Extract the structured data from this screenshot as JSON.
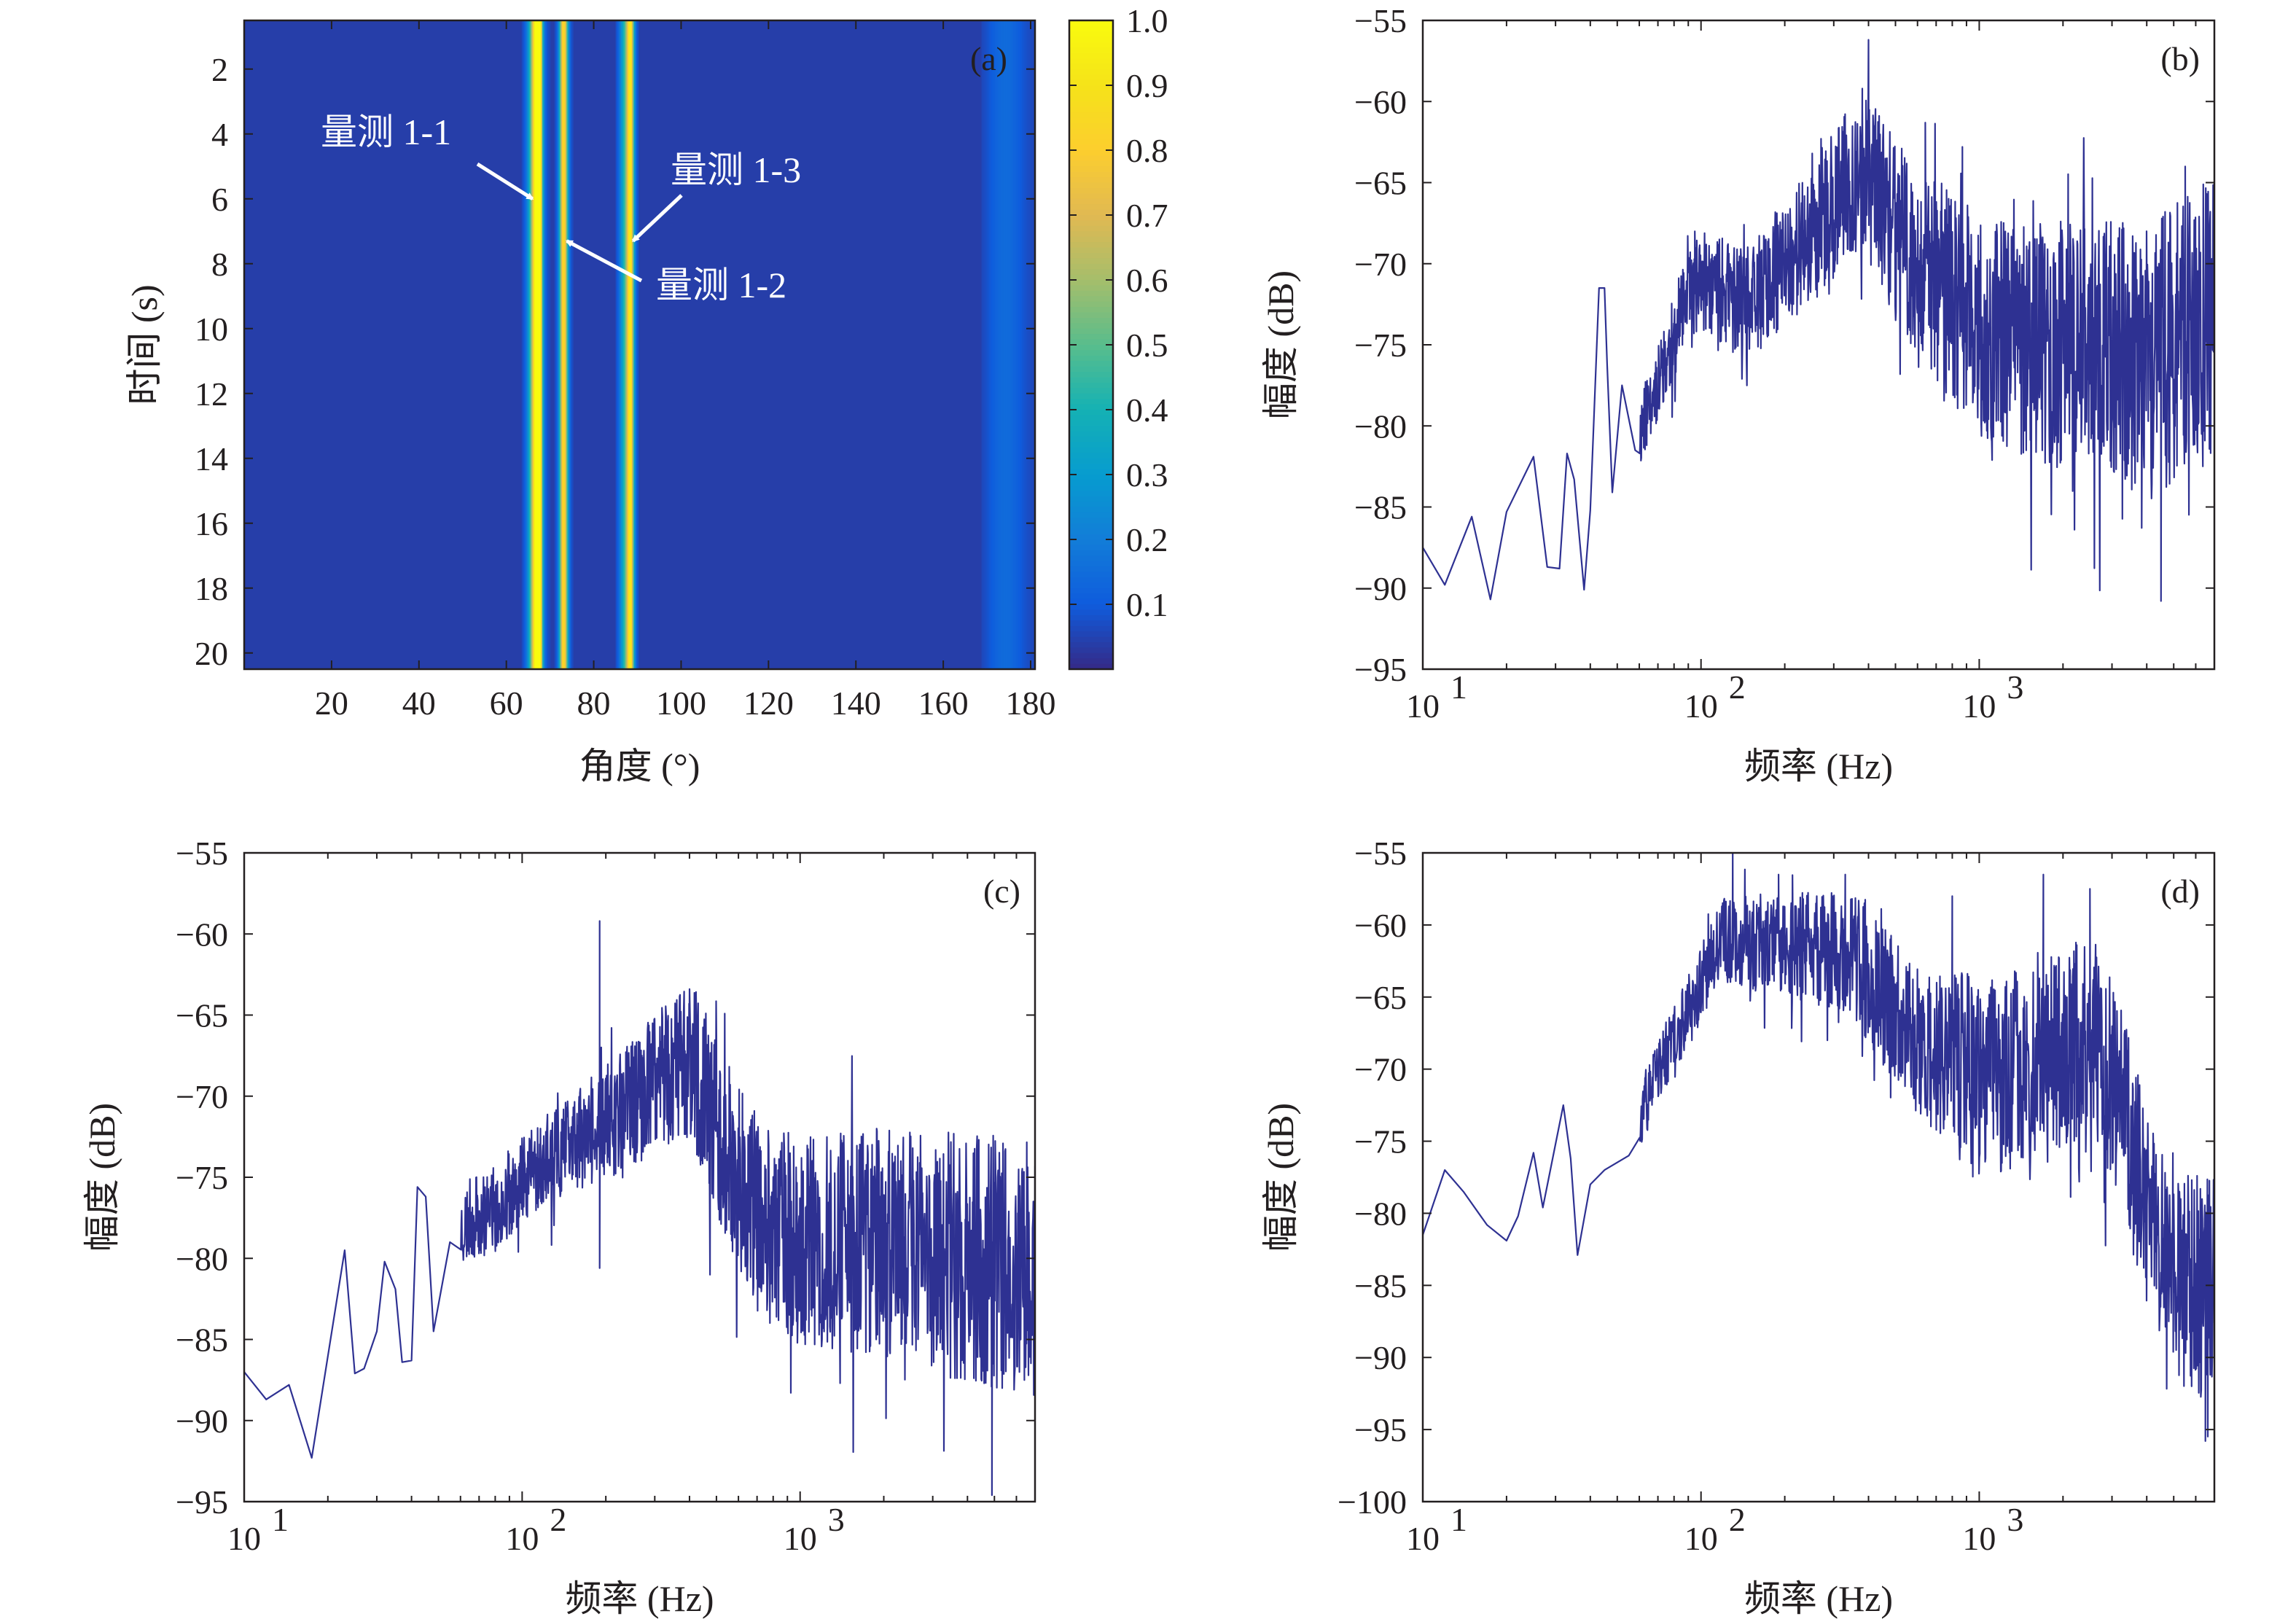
{
  "colors": {
    "axis": "#231f20",
    "line": "#2e3192",
    "annotation": "#ffffff"
  },
  "chart_data": [
    {
      "type": "heatmap",
      "panel": "(a)",
      "xlabel": "角度 (°)",
      "ylabel": "时间 (s)",
      "xlim": [
        0,
        181
      ],
      "ylim": [
        0.5,
        20.5
      ],
      "xticks": [
        20,
        40,
        60,
        80,
        100,
        120,
        140,
        160,
        180
      ],
      "yticks": [
        2,
        4,
        6,
        8,
        10,
        12,
        14,
        16,
        18,
        20
      ],
      "colorbar": {
        "range": [
          0,
          1.0
        ],
        "ticks": [
          "1.0",
          "0.9",
          "0.8",
          "0.7",
          "0.6",
          "0.5",
          "0.4",
          "0.3",
          "0.2",
          "0.1"
        ],
        "colormap": "parula"
      },
      "background_level": 0.04,
      "ridges": [
        {
          "angle": 66.5,
          "peak": 0.7,
          "width": 1.1
        },
        {
          "angle": 67.2,
          "peak": 0.9,
          "width": 0.55
        },
        {
          "angle": 73.0,
          "peak": 0.8,
          "width": 0.7
        },
        {
          "angle": 87.5,
          "peak": 0.45,
          "width": 1.1
        },
        {
          "angle": 88.3,
          "peak": 0.55,
          "width": 0.55
        },
        {
          "angle": 174,
          "peak": 0.1,
          "width": 3
        }
      ],
      "annotations": [
        {
          "text": "量测 1-1",
          "target_angle": 67,
          "target_time": 6
        },
        {
          "text": "量测 1-2",
          "target_angle": 72.5,
          "target_time": 7.3
        },
        {
          "text": "量测 1-3",
          "target_angle": 88,
          "target_time": 7.3
        }
      ]
    },
    {
      "type": "line",
      "panel": "(b)",
      "xlabel": "频率 (Hz)",
      "ylabel": "幅度 (dB)",
      "xscale": "log",
      "xlim": [
        10,
        7000
      ],
      "ylim": [
        -95,
        -55
      ],
      "xticks": [
        10,
        100,
        1000
      ],
      "xtick_labels": [
        "10",
        "10",
        "10"
      ],
      "xtick_exponents": [
        "1",
        "2",
        "3"
      ],
      "yticks": [
        -95,
        -90,
        -85,
        -80,
        -75,
        -70,
        -65,
        -60,
        -55
      ],
      "ytick_labels": [
        "−95",
        "−90",
        "−85",
        "−80",
        "−75",
        "−70",
        "−65",
        "−60",
        "−55"
      ],
      "anchors": [
        [
          10,
          -87.5
        ],
        [
          12,
          -89.8
        ],
        [
          15,
          -85.6
        ],
        [
          17.5,
          -90.7
        ],
        [
          20,
          -85.3
        ],
        [
          25,
          -81.9
        ],
        [
          28,
          -88.7
        ],
        [
          31,
          -88.8
        ],
        [
          33,
          -81.7
        ],
        [
          35,
          -83.3
        ],
        [
          38,
          -90.1
        ],
        [
          40,
          -85.2
        ],
        [
          43,
          -71.5
        ],
        [
          46,
          -76.3
        ],
        [
          48,
          -84.1
        ],
        [
          52,
          -77.5
        ],
        [
          58,
          -81.5
        ],
        [
          65,
          -78.5
        ],
        [
          75,
          -76
        ],
        [
          85,
          -73
        ],
        [
          100,
          -71
        ],
        [
          150,
          -72.5
        ],
        [
          250,
          -68
        ],
        [
          380,
          -64
        ],
        [
          500,
          -68
        ],
        [
          700,
          -71
        ],
        [
          1000,
          -74
        ],
        [
          1500,
          -75
        ],
        [
          2500,
          -75
        ],
        [
          4000,
          -76
        ],
        [
          5500,
          -74.5
        ],
        [
          7000,
          -73
        ]
      ],
      "spread": [
        [
          10,
          0
        ],
        [
          50,
          2
        ],
        [
          100,
          3
        ],
        [
          300,
          4.5
        ],
        [
          1000,
          7
        ],
        [
          3000,
          8
        ],
        [
          7000,
          9
        ]
      ],
      "spikes": [
        [
          380,
          -59.2
        ],
        [
          270,
          -62.3
        ],
        [
          640,
          -61.3
        ],
        [
          95,
          -68
        ],
        [
          45,
          -71.5
        ],
        [
          870,
          -62.8
        ],
        [
          4500,
          -90.8
        ],
        [
          2200,
          -86.4
        ],
        [
          5500,
          -64
        ]
      ],
      "samples": 1400,
      "seed": 11
    },
    {
      "type": "line",
      "panel": "(c)",
      "xlabel": "频率 (Hz)",
      "ylabel": "幅度 (dB)",
      "xscale": "log",
      "xlim": [
        10,
        7000
      ],
      "ylim": [
        -95,
        -55
      ],
      "xticks": [
        10,
        100,
        1000
      ],
      "xtick_labels": [
        "10",
        "10",
        "10"
      ],
      "xtick_exponents": [
        "1",
        "2",
        "3"
      ],
      "yticks": [
        -95,
        -90,
        -85,
        -80,
        -75,
        -70,
        -65,
        -60,
        -55
      ],
      "ytick_labels": [
        "−95",
        "−90",
        "−85",
        "−80",
        "−75",
        "−70",
        "−65",
        "−60",
        "−55"
      ],
      "anchors": [
        [
          10,
          -87
        ],
        [
          12,
          -88.7
        ],
        [
          14.5,
          -87.8
        ],
        [
          17.5,
          -92.3
        ],
        [
          23,
          -79.5
        ],
        [
          25,
          -87.1
        ],
        [
          27,
          -86.8
        ],
        [
          30,
          -84.5
        ],
        [
          32,
          -80.2
        ],
        [
          35,
          -81.9
        ],
        [
          37,
          -86.4
        ],
        [
          40,
          -86.3
        ],
        [
          42,
          -75.6
        ],
        [
          45,
          -76.2
        ],
        [
          48,
          -84.5
        ],
        [
          55,
          -79
        ],
        [
          65,
          -77.5
        ],
        [
          80,
          -77
        ],
        [
          100,
          -75
        ],
        [
          150,
          -73
        ],
        [
          250,
          -70.5
        ],
        [
          400,
          -67.5
        ],
        [
          550,
          -73.5
        ],
        [
          700,
          -77.5
        ],
        [
          1000,
          -79
        ],
        [
          2000,
          -79
        ],
        [
          4000,
          -80
        ],
        [
          7000,
          -80.5
        ]
      ],
      "spread": [
        [
          10,
          0
        ],
        [
          60,
          2.5
        ],
        [
          150,
          3
        ],
        [
          500,
          5.5
        ],
        [
          1000,
          6.5
        ],
        [
          3000,
          7.5
        ],
        [
          7000,
          8
        ]
      ],
      "spikes": [
        [
          190,
          -59.2
        ],
        [
          400,
          -63.4
        ],
        [
          160,
          -70.5
        ],
        [
          4900,
          -94.6
        ],
        [
          190,
          -80.6
        ],
        [
          1400,
          -72.3
        ],
        [
          500,
          -66.3
        ]
      ],
      "samples": 1400,
      "seed": 23
    },
    {
      "type": "line",
      "panel": "(d)",
      "xlabel": "频率 (Hz)",
      "ylabel": "幅度 (dB)",
      "xscale": "log",
      "xlim": [
        10,
        7000
      ],
      "ylim": [
        -100,
        -55
      ],
      "xticks": [
        10,
        100,
        1000
      ],
      "xtick_labels": [
        "10",
        "10",
        "10"
      ],
      "xtick_exponents": [
        "1",
        "2",
        "3"
      ],
      "yticks": [
        -100,
        -95,
        -90,
        -85,
        -80,
        -75,
        -70,
        -65,
        -60,
        -55
      ],
      "ytick_labels": [
        "−100",
        "−95",
        "−90",
        "−85",
        "−80",
        "−75",
        "−70",
        "−65",
        "−60",
        "−55"
      ],
      "anchors": [
        [
          10,
          -81.5
        ],
        [
          12,
          -77
        ],
        [
          14,
          -78.5
        ],
        [
          17,
          -80.8
        ],
        [
          20,
          -81.9
        ],
        [
          22,
          -80.2
        ],
        [
          25,
          -75.8
        ],
        [
          27,
          -79.6
        ],
        [
          30,
          -75.2
        ],
        [
          32,
          -72.5
        ],
        [
          34,
          -76.2
        ],
        [
          36,
          -82.9
        ],
        [
          40,
          -78
        ],
        [
          45,
          -77
        ],
        [
          55,
          -76
        ],
        [
          70,
          -70
        ],
        [
          90,
          -66
        ],
        [
          120,
          -61
        ],
        [
          200,
          -61.5
        ],
        [
          350,
          -62
        ],
        [
          500,
          -66
        ],
        [
          700,
          -69
        ],
        [
          1000,
          -70.5
        ],
        [
          1500,
          -70
        ],
        [
          2500,
          -67.5
        ],
        [
          3200,
          -72
        ],
        [
          4000,
          -80
        ],
        [
          5500,
          -84.5
        ],
        [
          7000,
          -85.5
        ]
      ],
      "spread": [
        [
          10,
          0
        ],
        [
          60,
          2
        ],
        [
          120,
          3
        ],
        [
          500,
          5
        ],
        [
          1000,
          7
        ],
        [
          3000,
          7
        ],
        [
          7000,
          8
        ]
      ],
      "spikes": [
        [
          130,
          -55
        ],
        [
          190,
          -56.5
        ],
        [
          330,
          -56.5
        ],
        [
          1700,
          -56.5
        ],
        [
          2500,
          -57.5
        ],
        [
          6500,
          -95.8
        ],
        [
          5800,
          -92
        ],
        [
          800,
          -58
        ]
      ],
      "samples": 1400,
      "seed": 37
    }
  ]
}
